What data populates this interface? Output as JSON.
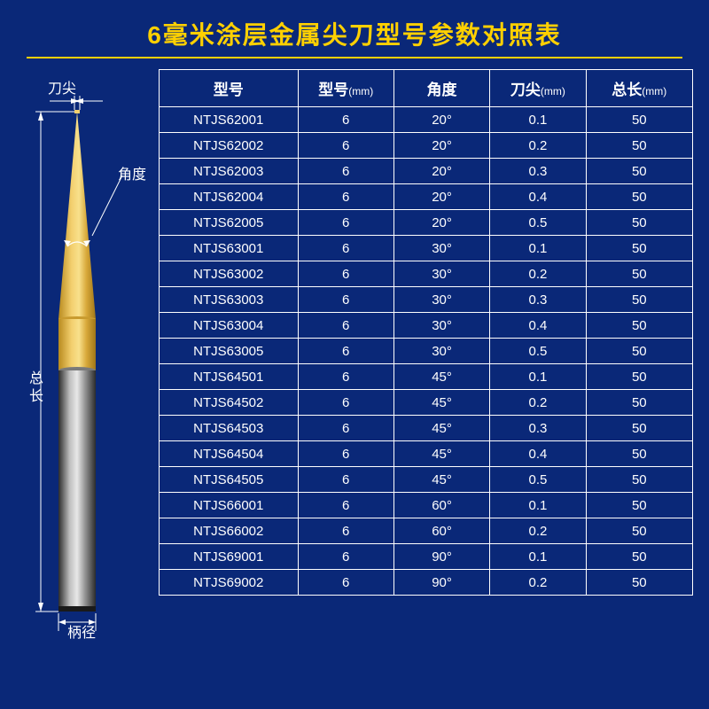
{
  "title": "6毫米涂层金属尖刀型号参数对照表",
  "diagram": {
    "tip_label": "刀尖",
    "angle_label": "角度",
    "length_label": "总长",
    "shank_label": "柄径",
    "colors": {
      "coating": "#d9a93a",
      "coating_light": "#f0c860",
      "shank_dark": "#4a4a4a",
      "shank_light": "#b8b8b8"
    }
  },
  "table": {
    "headers": [
      {
        "main": "型号",
        "unit": ""
      },
      {
        "main": "型号",
        "unit": "(mm)"
      },
      {
        "main": "角度",
        "unit": ""
      },
      {
        "main": "刀尖",
        "unit": "(mm)"
      },
      {
        "main": "总长",
        "unit": "(mm)"
      }
    ],
    "rows": [
      [
        "NTJS62001",
        "6",
        "20°",
        "0.1",
        "50"
      ],
      [
        "NTJS62002",
        "6",
        "20°",
        "0.2",
        "50"
      ],
      [
        "NTJS62003",
        "6",
        "20°",
        "0.3",
        "50"
      ],
      [
        "NTJS62004",
        "6",
        "20°",
        "0.4",
        "50"
      ],
      [
        "NTJS62005",
        "6",
        "20°",
        "0.5",
        "50"
      ],
      [
        "NTJS63001",
        "6",
        "30°",
        "0.1",
        "50"
      ],
      [
        "NTJS63002",
        "6",
        "30°",
        "0.2",
        "50"
      ],
      [
        "NTJS63003",
        "6",
        "30°",
        "0.3",
        "50"
      ],
      [
        "NTJS63004",
        "6",
        "30°",
        "0.4",
        "50"
      ],
      [
        "NTJS63005",
        "6",
        "30°",
        "0.5",
        "50"
      ],
      [
        "NTJS64501",
        "6",
        "45°",
        "0.1",
        "50"
      ],
      [
        "NTJS64502",
        "6",
        "45°",
        "0.2",
        "50"
      ],
      [
        "NTJS64503",
        "6",
        "45°",
        "0.3",
        "50"
      ],
      [
        "NTJS64504",
        "6",
        "45°",
        "0.4",
        "50"
      ],
      [
        "NTJS64505",
        "6",
        "45°",
        "0.5",
        "50"
      ],
      [
        "NTJS66001",
        "6",
        "60°",
        "0.1",
        "50"
      ],
      [
        "NTJS66002",
        "6",
        "60°",
        "0.2",
        "50"
      ],
      [
        "NTJS69001",
        "6",
        "90°",
        "0.1",
        "50"
      ],
      [
        "NTJS69002",
        "6",
        "90°",
        "0.2",
        "50"
      ]
    ],
    "col_widths": [
      "26%",
      "18%",
      "18%",
      "18%",
      "20%"
    ]
  },
  "style": {
    "background_color": "#0a2878",
    "title_color": "#ffd000",
    "border_color": "#ffffff",
    "text_color": "#ffffff",
    "title_fontsize": 28,
    "header_fontsize": 17,
    "cell_fontsize": 15
  }
}
